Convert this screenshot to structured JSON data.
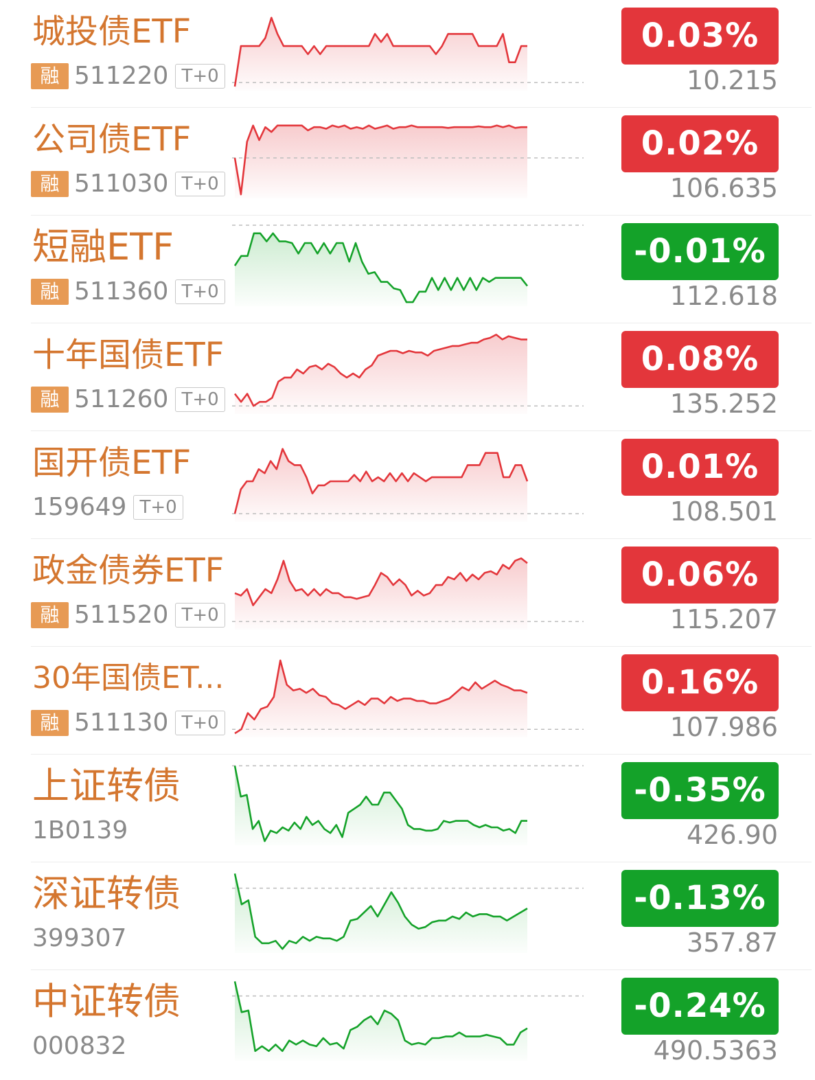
{
  "colors": {
    "up": "#e3363b",
    "down": "#14a229",
    "up_fill": "#f6c3c5",
    "down_fill": "#c4e9c9",
    "name": "#d4762f",
    "rong_bg": "#e79a54",
    "muted": "#8a8a8a"
  },
  "icons": {
    "up_trend": "red-sparkline",
    "down_trend": "green-sparkline"
  },
  "items": [
    {
      "name": "城投债ETF",
      "rong": "融",
      "code": "511220",
      "tplus": "T+0",
      "change": "0.03%",
      "price": "10.215",
      "direction": "up",
      "baseline": 0.1,
      "series": [
        0.05,
        0.55,
        0.55,
        0.55,
        0.55,
        0.65,
        0.9,
        0.7,
        0.55,
        0.55,
        0.55,
        0.55,
        0.45,
        0.55,
        0.45,
        0.55,
        0.55,
        0.55,
        0.55,
        0.55,
        0.55,
        0.55,
        0.55,
        0.7,
        0.6,
        0.7,
        0.55,
        0.55,
        0.55,
        0.55,
        0.55,
        0.55,
        0.55,
        0.45,
        0.55,
        0.7,
        0.7,
        0.7,
        0.7,
        0.7,
        0.55,
        0.55,
        0.55,
        0.55,
        0.7,
        0.35,
        0.35,
        0.55,
        0.55
      ]
    },
    {
      "name": "公司债ETF",
      "rong": "融",
      "code": "511030",
      "tplus": "T+0",
      "change": "0.02%",
      "price": "106.635",
      "direction": "up",
      "baseline": 0.5,
      "series": [
        0.5,
        0.05,
        0.7,
        0.9,
        0.72,
        0.88,
        0.82,
        0.9,
        0.9,
        0.9,
        0.9,
        0.9,
        0.84,
        0.88,
        0.88,
        0.86,
        0.9,
        0.88,
        0.9,
        0.86,
        0.88,
        0.86,
        0.9,
        0.86,
        0.88,
        0.9,
        0.86,
        0.88,
        0.88,
        0.9,
        0.88,
        0.88,
        0.88,
        0.88,
        0.88,
        0.87,
        0.88,
        0.88,
        0.88,
        0.88,
        0.89,
        0.88,
        0.88,
        0.9,
        0.88,
        0.9,
        0.87,
        0.88,
        0.88
      ]
    },
    {
      "name": "短融ETF",
      "rong": "融",
      "code": "511360",
      "tplus": "T+0",
      "change": "-0.01%",
      "price": "112.618",
      "direction": "down",
      "baseline": 1.0,
      "series": [
        0.5,
        0.62,
        0.62,
        0.9,
        0.9,
        0.8,
        0.9,
        0.8,
        0.8,
        0.78,
        0.65,
        0.78,
        0.78,
        0.65,
        0.78,
        0.65,
        0.78,
        0.78,
        0.55,
        0.78,
        0.55,
        0.4,
        0.42,
        0.3,
        0.3,
        0.22,
        0.2,
        0.05,
        0.05,
        0.18,
        0.18,
        0.35,
        0.2,
        0.35,
        0.2,
        0.35,
        0.2,
        0.35,
        0.2,
        0.35,
        0.3,
        0.35,
        0.35,
        0.35,
        0.35,
        0.35,
        0.25
      ]
    },
    {
      "name": "十年国债ETF",
      "rong": "融",
      "code": "511260",
      "tplus": "T+0",
      "change": "0.08%",
      "price": "135.252",
      "direction": "up",
      "baseline": 0.1,
      "series": [
        0.25,
        0.15,
        0.25,
        0.1,
        0.15,
        0.15,
        0.2,
        0.4,
        0.45,
        0.45,
        0.55,
        0.5,
        0.58,
        0.6,
        0.55,
        0.62,
        0.58,
        0.5,
        0.45,
        0.5,
        0.45,
        0.55,
        0.6,
        0.72,
        0.75,
        0.78,
        0.78,
        0.75,
        0.78,
        0.76,
        0.76,
        0.72,
        0.78,
        0.8,
        0.82,
        0.84,
        0.84,
        0.86,
        0.88,
        0.88,
        0.92,
        0.94,
        0.98,
        0.92,
        0.96,
        0.94,
        0.92,
        0.92
      ]
    },
    {
      "name": "国开债ETF",
      "rong": "",
      "code": "159649",
      "tplus": "T+0",
      "change": "0.01%",
      "price": "108.501",
      "direction": "up",
      "baseline": 0.1,
      "series": [
        0.1,
        0.4,
        0.5,
        0.5,
        0.65,
        0.6,
        0.75,
        0.65,
        0.9,
        0.75,
        0.7,
        0.7,
        0.55,
        0.35,
        0.45,
        0.45,
        0.5,
        0.5,
        0.5,
        0.5,
        0.58,
        0.5,
        0.62,
        0.5,
        0.55,
        0.5,
        0.6,
        0.5,
        0.6,
        0.5,
        0.6,
        0.55,
        0.5,
        0.55,
        0.55,
        0.55,
        0.55,
        0.55,
        0.55,
        0.7,
        0.7,
        0.7,
        0.85,
        0.85,
        0.85,
        0.55,
        0.55,
        0.7,
        0.7,
        0.5
      ]
    },
    {
      "name": "政金债券ETF",
      "rong": "融",
      "code": "511520",
      "tplus": "T+0",
      "change": "0.06%",
      "price": "115.207",
      "direction": "up",
      "baseline": 0.1,
      "series": [
        0.45,
        0.42,
        0.5,
        0.3,
        0.4,
        0.5,
        0.45,
        0.62,
        0.85,
        0.6,
        0.48,
        0.5,
        0.42,
        0.5,
        0.42,
        0.5,
        0.45,
        0.45,
        0.4,
        0.4,
        0.38,
        0.4,
        0.42,
        0.55,
        0.7,
        0.65,
        0.55,
        0.62,
        0.55,
        0.42,
        0.48,
        0.42,
        0.45,
        0.55,
        0.55,
        0.65,
        0.62,
        0.7,
        0.6,
        0.68,
        0.62,
        0.7,
        0.72,
        0.68,
        0.8,
        0.75,
        0.85,
        0.88,
        0.82
      ]
    },
    {
      "name": "30年国债ET...",
      "rong": "融",
      "code": "511130",
      "tplus": "T+0",
      "change": "0.16%",
      "price": "107.986",
      "direction": "up",
      "baseline": 0.1,
      "series": [
        0.05,
        0.1,
        0.3,
        0.22,
        0.35,
        0.38,
        0.5,
        0.95,
        0.65,
        0.58,
        0.6,
        0.55,
        0.6,
        0.52,
        0.5,
        0.42,
        0.4,
        0.35,
        0.4,
        0.45,
        0.4,
        0.48,
        0.48,
        0.42,
        0.5,
        0.45,
        0.48,
        0.48,
        0.45,
        0.45,
        0.42,
        0.42,
        0.45,
        0.48,
        0.55,
        0.62,
        0.58,
        0.68,
        0.6,
        0.65,
        0.7,
        0.65,
        0.62,
        0.58,
        0.58,
        0.55
      ]
    },
    {
      "name": "上证转债",
      "rong": "",
      "code": "1B0139",
      "tplus": "",
      "change": "-0.35%",
      "price": "426.90",
      "direction": "down",
      "baseline": 0.98,
      "series": [
        0.98,
        0.6,
        0.62,
        0.2,
        0.3,
        0.05,
        0.18,
        0.15,
        0.22,
        0.18,
        0.28,
        0.2,
        0.35,
        0.25,
        0.3,
        0.2,
        0.15,
        0.25,
        0.1,
        0.4,
        0.45,
        0.5,
        0.6,
        0.5,
        0.5,
        0.65,
        0.65,
        0.55,
        0.45,
        0.25,
        0.2,
        0.2,
        0.18,
        0.18,
        0.2,
        0.3,
        0.28,
        0.3,
        0.3,
        0.3,
        0.25,
        0.22,
        0.25,
        0.22,
        0.22,
        0.18,
        0.2,
        0.15,
        0.3,
        0.3
      ]
    },
    {
      "name": "深证转债",
      "rong": "",
      "code": "399307",
      "tplus": "",
      "change": "-0.13%",
      "price": "357.87",
      "direction": "down",
      "baseline": 0.8,
      "series": [
        0.98,
        0.6,
        0.65,
        0.2,
        0.12,
        0.12,
        0.15,
        0.05,
        0.15,
        0.12,
        0.2,
        0.15,
        0.2,
        0.18,
        0.18,
        0.15,
        0.2,
        0.4,
        0.42,
        0.5,
        0.58,
        0.45,
        0.6,
        0.75,
        0.62,
        0.45,
        0.35,
        0.3,
        0.32,
        0.38,
        0.4,
        0.4,
        0.45,
        0.42,
        0.5,
        0.45,
        0.48,
        0.48,
        0.45,
        0.45,
        0.4,
        0.45,
        0.5,
        0.55
      ]
    },
    {
      "name": "中证转债",
      "rong": "",
      "code": "000832",
      "tplus": "",
      "change": "-0.24%",
      "price": "490.5363",
      "direction": "down",
      "baseline": 0.8,
      "series": [
        0.98,
        0.6,
        0.62,
        0.12,
        0.18,
        0.12,
        0.2,
        0.12,
        0.25,
        0.2,
        0.25,
        0.2,
        0.18,
        0.28,
        0.2,
        0.22,
        0.15,
        0.38,
        0.42,
        0.5,
        0.55,
        0.45,
        0.62,
        0.58,
        0.5,
        0.25,
        0.2,
        0.22,
        0.2,
        0.28,
        0.28,
        0.3,
        0.3,
        0.35,
        0.3,
        0.3,
        0.3,
        0.32,
        0.3,
        0.28,
        0.2,
        0.2,
        0.35,
        0.4
      ]
    }
  ]
}
